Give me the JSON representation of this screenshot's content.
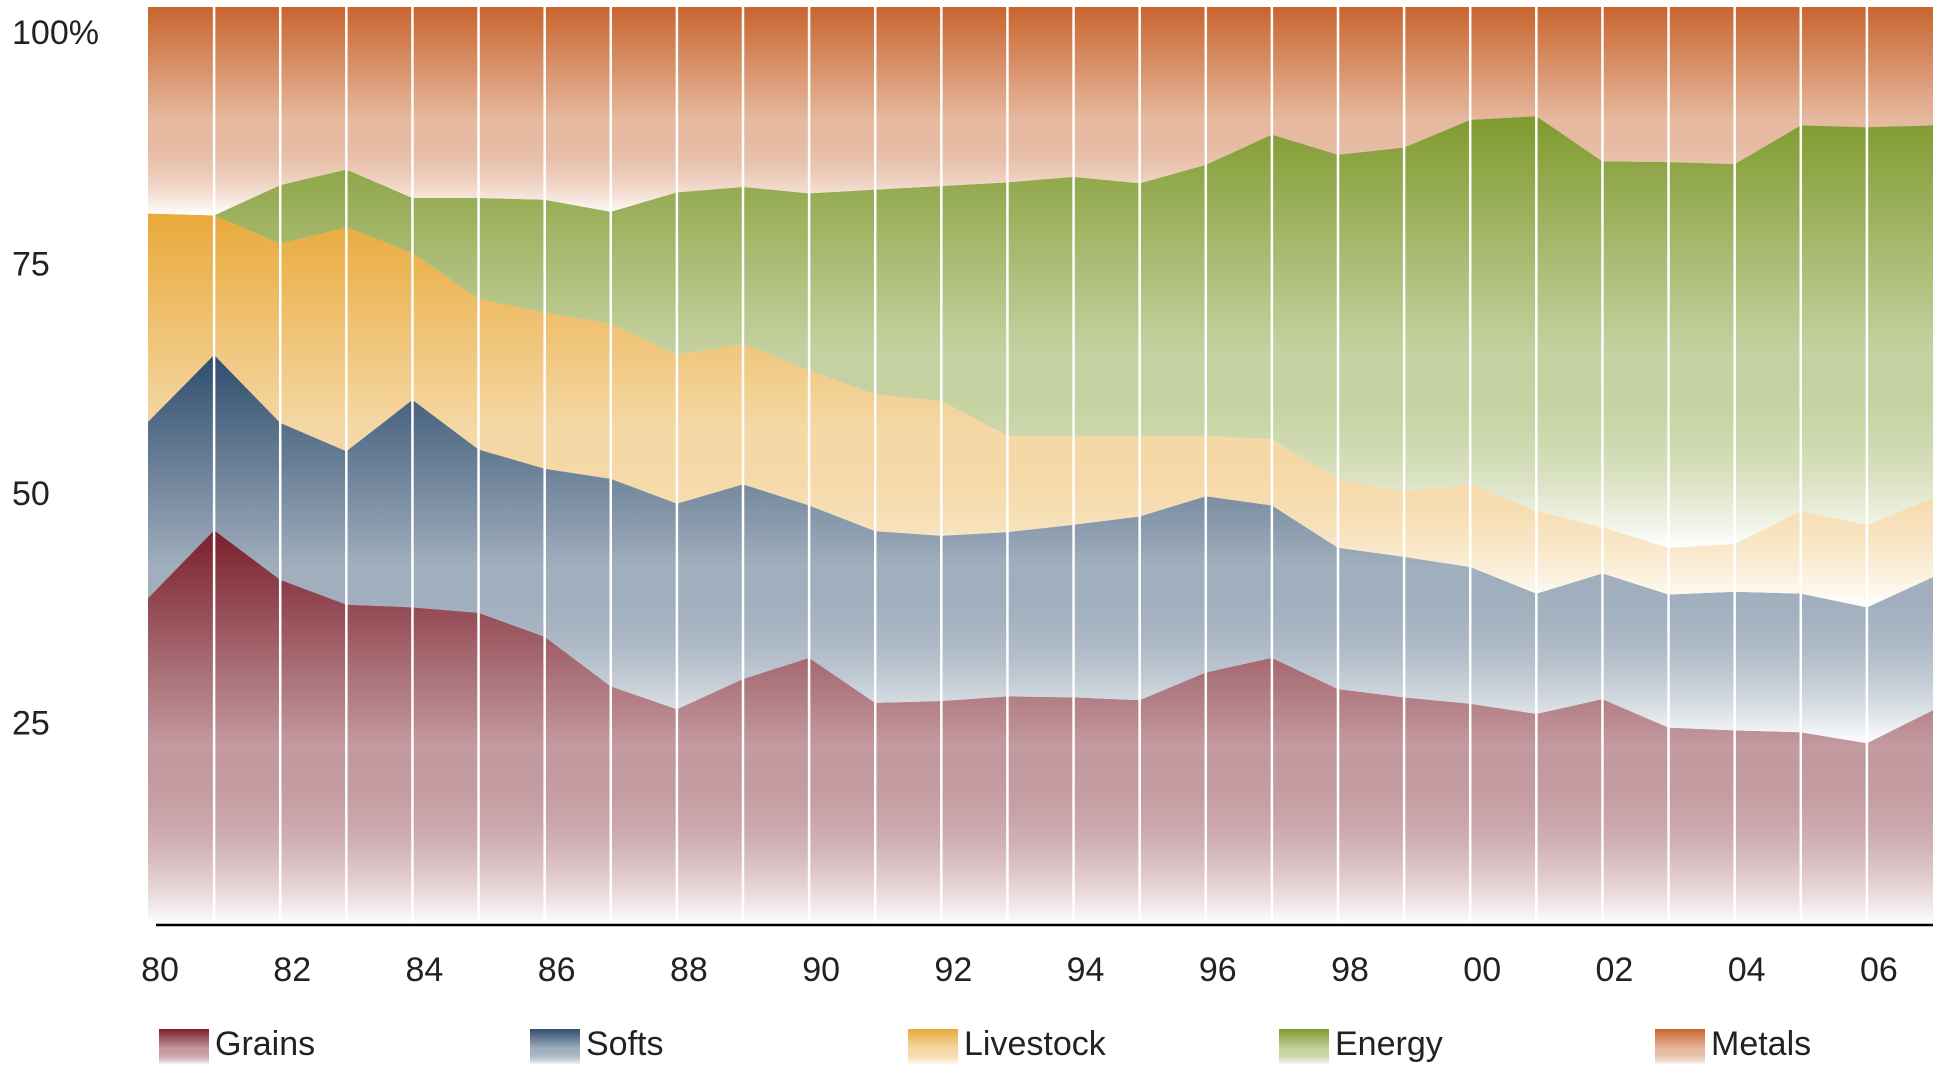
{
  "chart_data": {
    "type": "stacked_area_percent",
    "x": [
      1980,
      1981,
      1982,
      1983,
      1984,
      1985,
      1986,
      1987,
      1988,
      1989,
      1990,
      1991,
      1992,
      1993,
      1994,
      1995,
      1996,
      1997,
      1998,
      1999,
      2000,
      2001,
      2002,
      2003,
      2004,
      2005,
      2006,
      2007
    ],
    "series": [
      {
        "name": "Grains",
        "color": "#7a1f2b",
        "values": [
          35.6,
          43.0,
          37.6,
          34.9,
          34.6,
          34.0,
          31.4,
          26.0,
          23.5,
          26.8,
          29.1,
          24.2,
          24.4,
          24.9,
          24.8,
          24.5,
          27.5,
          29.1,
          25.7,
          24.8,
          24.1,
          23.0,
          24.6,
          21.5,
          21.2,
          21.0,
          19.8,
          23.4
        ]
      },
      {
        "name": "Softs",
        "color": "#2f4d6e",
        "values": [
          19.2,
          19.1,
          17.1,
          16.7,
          22.6,
          17.8,
          18.3,
          22.6,
          22.4,
          21.2,
          16.6,
          18.7,
          18.0,
          17.9,
          18.8,
          20.0,
          19.2,
          16.6,
          15.4,
          15.3,
          14.9,
          13.1,
          13.7,
          14.5,
          15.1,
          15.1,
          14.8,
          14.5
        ]
      },
      {
        "name": "Livestock",
        "color": "#e9a93a",
        "values": [
          22.7,
          15.2,
          19.5,
          24.4,
          16.0,
          16.4,
          17.0,
          16.9,
          16.2,
          15.3,
          14.7,
          14.9,
          14.7,
          10.5,
          9.7,
          8.8,
          6.6,
          7.2,
          7.5,
          7.1,
          9.0,
          9.0,
          5.0,
          5.1,
          5.2,
          9.0,
          9.0,
          8.6
        ]
      },
      {
        "name": "Energy",
        "color": "#7f9a2e",
        "values": [
          0,
          0,
          6.4,
          6.3,
          6.0,
          11.0,
          12.3,
          12.2,
          17.7,
          17.1,
          19.3,
          22.3,
          23.4,
          27.6,
          28.2,
          27.5,
          29.5,
          33.2,
          35.3,
          37.5,
          39.7,
          43.0,
          39.9,
          42.0,
          41.4,
          42.0,
          43.3,
          40.6
        ]
      },
      {
        "name": "Metals",
        "color": "#c8652e",
        "values": [
          22.5,
          22.7,
          19.4,
          17.7,
          20.8,
          20.8,
          21.0,
          22.3,
          20.2,
          19.6,
          20.3,
          19.9,
          19.5,
          19.1,
          18.5,
          19.2,
          17.2,
          13.9,
          16.1,
          15.3,
          12.3,
          11.9,
          16.8,
          16.9,
          17.1,
          12.9,
          13.1,
          12.9
        ]
      }
    ],
    "xlim": [
      1980,
      2007
    ],
    "xticks": [
      {
        "value": 1980,
        "label": "80"
      },
      {
        "value": 1982,
        "label": "82"
      },
      {
        "value": 1984,
        "label": "84"
      },
      {
        "value": 1986,
        "label": "86"
      },
      {
        "value": 1988,
        "label": "88"
      },
      {
        "value": 1990,
        "label": "90"
      },
      {
        "value": 1992,
        "label": "92"
      },
      {
        "value": 1994,
        "label": "94"
      },
      {
        "value": 1996,
        "label": "96"
      },
      {
        "value": 1998,
        "label": "98"
      },
      {
        "value": 2000,
        "label": "00"
      },
      {
        "value": 2002,
        "label": "02"
      },
      {
        "value": 2004,
        "label": "04"
      },
      {
        "value": 2006,
        "label": "06"
      }
    ],
    "ylim": [
      0,
      100
    ],
    "yticks": [
      25,
      50,
      75,
      {
        "value": 100,
        "label": "100%"
      }
    ],
    "grid": true,
    "legend": "bottom"
  }
}
